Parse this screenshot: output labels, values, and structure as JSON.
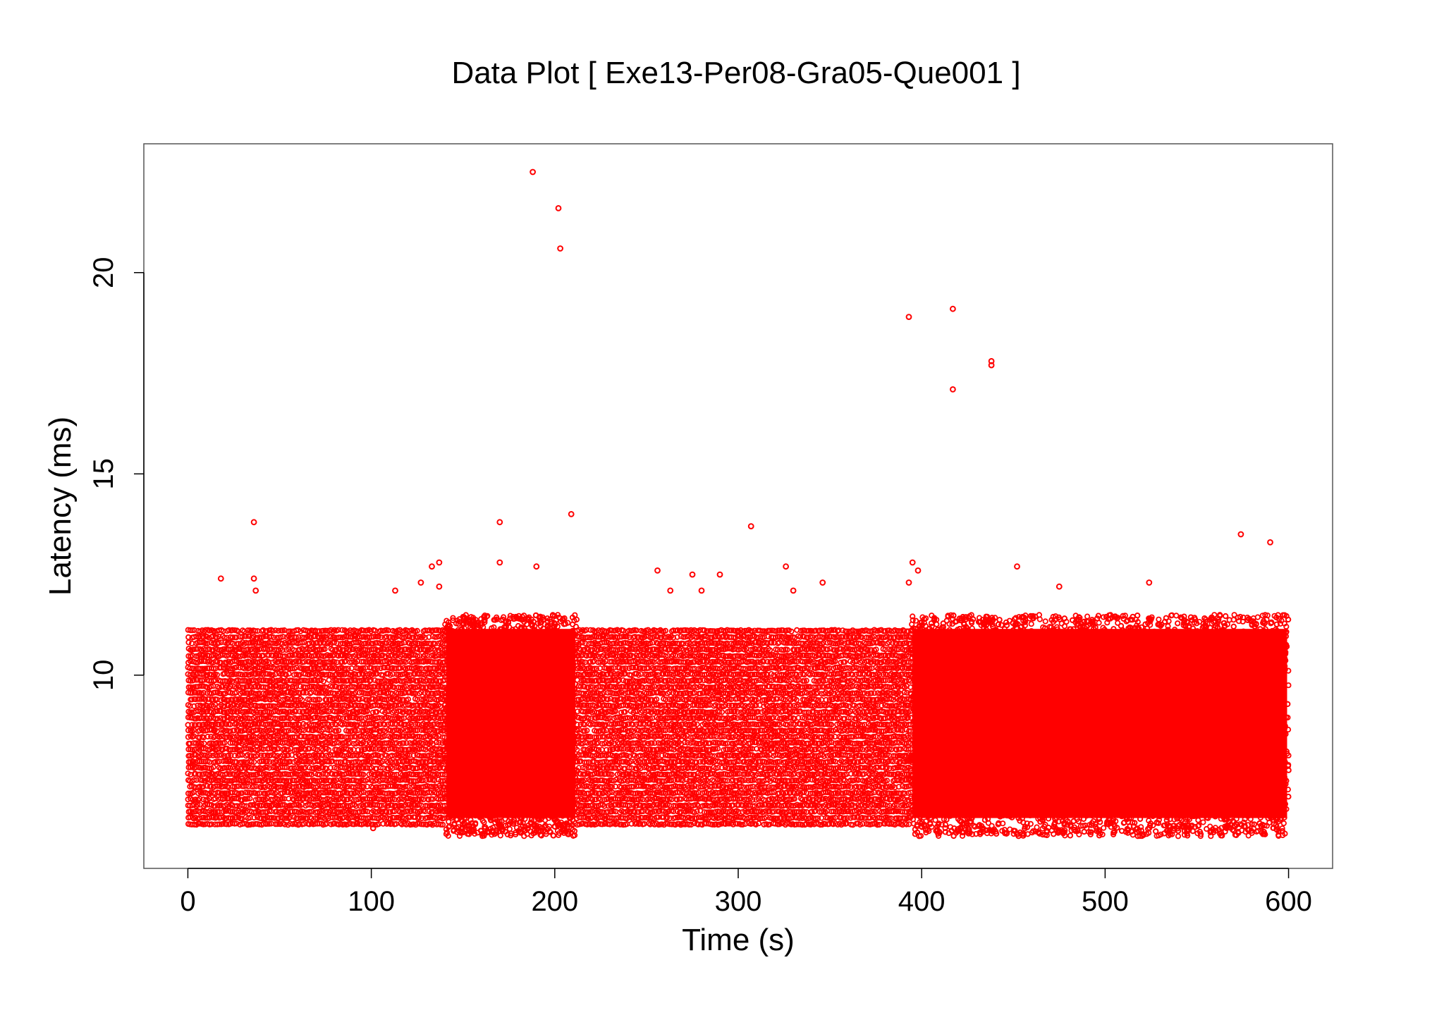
{
  "chart_data": {
    "type": "scatter",
    "title": "Data Plot [ Exe13-Per08-Gra05-Que001 ]",
    "xlabel": "Time (s)",
    "ylabel": "Latency (ms)",
    "xlim": [
      -24,
      624
    ],
    "ylim": [
      5.2,
      23.2
    ],
    "x_ticks": [
      0,
      100,
      200,
      300,
      400,
      500,
      600
    ],
    "y_ticks": [
      10,
      15,
      20
    ],
    "grid": false,
    "legend": "none",
    "marker": "open-circle",
    "color": "#ff0000",
    "series": [
      {
        "bulk_regions": [
          {
            "x_range": [
              0,
              140
            ],
            "y_range": [
              6.0,
              11.3
            ],
            "pattern": "banded",
            "density": "high"
          },
          {
            "x_range": [
              140,
              212
            ],
            "y_range": [
              6.0,
              11.5
            ],
            "pattern": "dense",
            "density": "very-high"
          },
          {
            "x_range": [
              212,
              394
            ],
            "y_range": [
              6.0,
              11.3
            ],
            "pattern": "banded",
            "density": "high"
          },
          {
            "x_range": [
              394,
              600
            ],
            "y_range": [
              6.0,
              11.5
            ],
            "pattern": "dense",
            "density": "very-high"
          }
        ],
        "outliers": [
          {
            "x": 18,
            "y": 12.4
          },
          {
            "x": 36,
            "y": 13.8
          },
          {
            "x": 36,
            "y": 12.4
          },
          {
            "x": 37,
            "y": 12.1
          },
          {
            "x": 113,
            "y": 12.1
          },
          {
            "x": 127,
            "y": 12.3
          },
          {
            "x": 133,
            "y": 12.7
          },
          {
            "x": 137,
            "y": 12.8
          },
          {
            "x": 137,
            "y": 12.2
          },
          {
            "x": 170,
            "y": 13.8
          },
          {
            "x": 170,
            "y": 12.8
          },
          {
            "x": 188,
            "y": 22.5
          },
          {
            "x": 190,
            "y": 12.7
          },
          {
            "x": 202,
            "y": 21.6
          },
          {
            "x": 203,
            "y": 20.6
          },
          {
            "x": 209,
            "y": 14.0
          },
          {
            "x": 256,
            "y": 12.6
          },
          {
            "x": 263,
            "y": 12.1
          },
          {
            "x": 275,
            "y": 12.5
          },
          {
            "x": 280,
            "y": 12.1
          },
          {
            "x": 290,
            "y": 12.5
          },
          {
            "x": 307,
            "y": 13.7
          },
          {
            "x": 326,
            "y": 12.7
          },
          {
            "x": 330,
            "y": 12.1
          },
          {
            "x": 346,
            "y": 12.3
          },
          {
            "x": 393,
            "y": 18.9
          },
          {
            "x": 393,
            "y": 12.3
          },
          {
            "x": 395,
            "y": 12.8
          },
          {
            "x": 398,
            "y": 12.6
          },
          {
            "x": 417,
            "y": 19.1
          },
          {
            "x": 417,
            "y": 17.1
          },
          {
            "x": 438,
            "y": 17.8
          },
          {
            "x": 438,
            "y": 17.7
          },
          {
            "x": 452,
            "y": 12.7
          },
          {
            "x": 475,
            "y": 12.2
          },
          {
            "x": 524,
            "y": 12.3
          },
          {
            "x": 574,
            "y": 13.5
          },
          {
            "x": 590,
            "y": 13.3
          },
          {
            "x": 101,
            "y": 6.2
          },
          {
            "x": 270,
            "y": 6.3
          }
        ]
      }
    ]
  }
}
